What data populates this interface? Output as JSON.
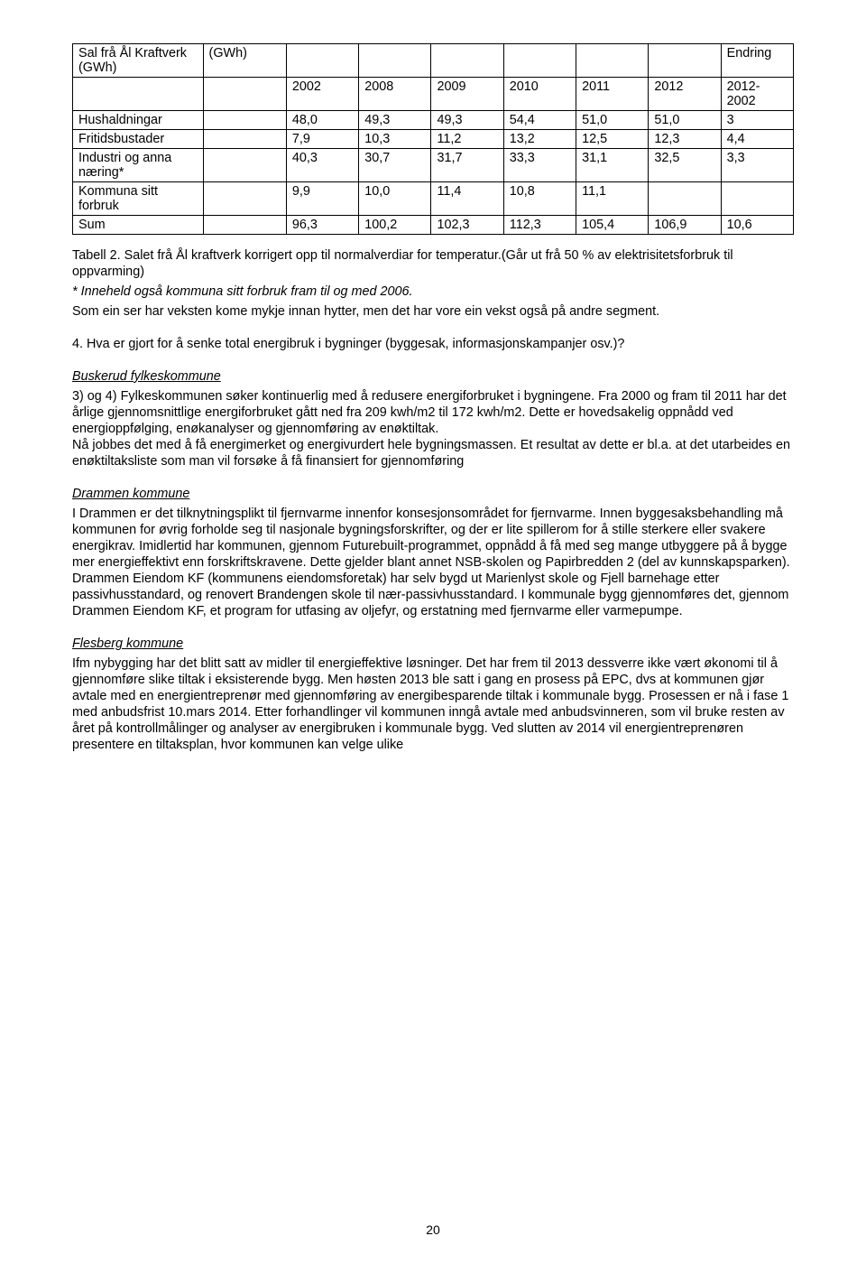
{
  "table": {
    "columns": [
      "",
      "(GWh)",
      "2002",
      "2008",
      "2009",
      "2010",
      "2011",
      "2012",
      "2012-2002"
    ],
    "header_row": {
      "label": "Sal frå Ål Kraftverk (GWh)",
      "unit": "(GWh)",
      "years": [
        "",
        "",
        "",
        "",
        "",
        ""
      ],
      "end": "Endring"
    },
    "year_row": [
      "",
      "",
      "2002",
      "2008",
      "2009",
      "2010",
      "2011",
      "2012",
      "2012-2002"
    ],
    "rows": [
      {
        "label": "Hushaldningar",
        "unit": "",
        "cells": [
          "48,0",
          "49,3",
          "49,3",
          "54,4",
          "51,0",
          "51,0",
          "3"
        ]
      },
      {
        "label": "Fritidsbustader",
        "unit": "",
        "cells": [
          "7,9",
          "10,3",
          "11,2",
          "13,2",
          "12,5",
          "12,3",
          "4,4"
        ]
      },
      {
        "label": "Industri og anna næring*",
        "unit": "",
        "cells": [
          "40,3",
          "30,7",
          "31,7",
          "33,3",
          "31,1",
          "32,5",
          "3,3"
        ]
      },
      {
        "label": "Kommuna sitt forbruk",
        "unit": "",
        "cells": [
          "9,9",
          "10,0",
          "11,4",
          "10,8",
          "11,1",
          "",
          ""
        ]
      },
      {
        "label": "Sum",
        "unit": "",
        "cells": [
          "96,3",
          "100,2",
          "102,3",
          "112,3",
          "105,4",
          "106,9",
          "10,6"
        ]
      }
    ],
    "border_color": "#000000",
    "font_size_pt": 11,
    "background": "#ffffff"
  },
  "caption": {
    "line1": "Tabell 2. Salet frå Ål kraftverk korrigert opp til normalverdiar for temperatur.(Går ut frå 50 % av elektrisitetsforbruk til oppvarming)",
    "italic": "* Inneheld også kommuna sitt forbruk fram til og med 2006.",
    "line2": "Som ein ser har veksten kome mykje innan hytter, men det har vore ein vekst også på andre segment."
  },
  "q4": {
    "num": "4. ",
    "text": "Hva er gjort for å senke total energibruk i bygninger (byggesak, informasjonskampanjer osv.)?"
  },
  "buskerud": {
    "title": "Buskerud fylkeskommune",
    "body": "3) og 4) Fylkeskommunen søker kontinuerlig med å redusere energiforbruket i bygningene. Fra 2000 og fram til 2011 har det årlige gjennomsnittlige energiforbruket gått ned fra 209 kwh/m2 til 172 kwh/m2. Dette er hovedsakelig oppnådd ved energioppfølging, enøkanalyser og gjennomføring av enøktiltak.\nNå jobbes det med å få energimerket og energivurdert hele  bygningsmassen. Et resultat av dette er bl.a. at det utarbeides en enøktiltaksliste som man vil forsøke å få finansiert for gjennomføring"
  },
  "drammen": {
    "title": "Drammen kommune",
    "body": "I Drammen er det tilknytningsplikt til fjernvarme innenfor konsesjonsområdet for fjernvarme. Innen byggesaksbehandling må kommunen for øvrig forholde seg til nasjonale bygningsforskrifter, og der er lite spillerom for å stille sterkere eller svakere energikrav. Imidlertid har kommunen, gjennom Futurebuilt-programmet, oppnådd å få med seg mange utbyggere på å bygge mer energieffektivt enn forskriftskravene. Dette gjelder blant annet NSB-skolen og Papirbredden 2 (del av kunnskapsparken). Drammen Eiendom KF (kommunens eiendomsforetak) har selv bygd ut Marienlyst skole og Fjell barnehage etter passivhusstandard, og renovert Brandengen skole til nær-passivhusstandard. I kommunale bygg gjennomføres det, gjennom Drammen Eiendom KF, et program for utfasing av oljefyr, og erstatning med fjernvarme eller varmepumpe."
  },
  "flesberg": {
    "title": "Flesberg kommune",
    "body": "Ifm nybygging har det blitt satt av midler til energieffektive løsninger. Det har frem til 2013 dessverre ikke vært økonomi til å gjennomføre slike tiltak i eksisterende bygg. Men høsten 2013 ble satt i gang en prosess på EPC, dvs at kommunen gjør avtale med en energientreprenør med gjennomføring av energibesparende tiltak i kommunale bygg. Prosessen er nå i fase 1 med anbudsfrist 10.mars 2014. Etter forhandlinger vil kommunen inngå avtale med anbudsvinneren, som vil bruke resten av året på kontrollmålinger og analyser av energibruken i kommunale bygg. Ved slutten av 2014 vil energientreprenøren presentere en tiltaksplan, hvor kommunen kan velge ulike"
  },
  "page_number": "20",
  "colors": {
    "text": "#000000",
    "background": "#ffffff"
  }
}
